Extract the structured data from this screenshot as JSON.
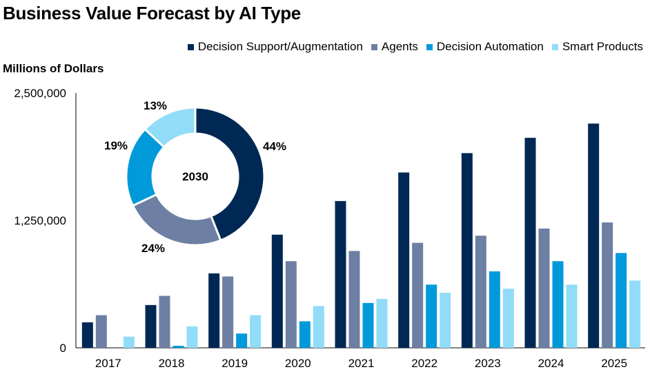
{
  "chart_data": {
    "type": "bar",
    "title": "Business Value Forecast by AI Type",
    "ylabel": "Millions of Dollars",
    "xlabel": "",
    "ylim": [
      0,
      2500000
    ],
    "yticks": [
      "0",
      "1,250,000",
      "2,500,000"
    ],
    "ytick_values": [
      0,
      1250000,
      2500000
    ],
    "categories": [
      "2017",
      "2018",
      "2019",
      "2020",
      "2021",
      "2022",
      "2023",
      "2024",
      "2025"
    ],
    "series": [
      {
        "name": "Decision Support/Augmentation",
        "color": "#002855",
        "values": [
          250000,
          420000,
          730000,
          1110000,
          1440000,
          1720000,
          1910000,
          2060000,
          2200000
        ]
      },
      {
        "name": "Agents",
        "color": "#6d7fa3",
        "values": [
          320000,
          510000,
          700000,
          850000,
          950000,
          1030000,
          1100000,
          1170000,
          1230000
        ]
      },
      {
        "name": "Decision Automation",
        "color": "#009ada",
        "values": [
          0,
          20000,
          140000,
          260000,
          440000,
          620000,
          750000,
          850000,
          930000
        ]
      },
      {
        "name": "Smart Products",
        "color": "#91dcf8",
        "values": [
          110000,
          210000,
          320000,
          410000,
          480000,
          540000,
          580000,
          620000,
          660000
        ]
      }
    ],
    "inset": {
      "type": "pie",
      "center_label": "2030",
      "slices": [
        {
          "label": "44%",
          "value": 44,
          "color": "#002855"
        },
        {
          "label": "24%",
          "value": 24,
          "color": "#6d7fa3"
        },
        {
          "label": "19%",
          "value": 19,
          "color": "#009ada"
        },
        {
          "label": "13%",
          "value": 13,
          "color": "#91dcf8"
        }
      ]
    }
  }
}
